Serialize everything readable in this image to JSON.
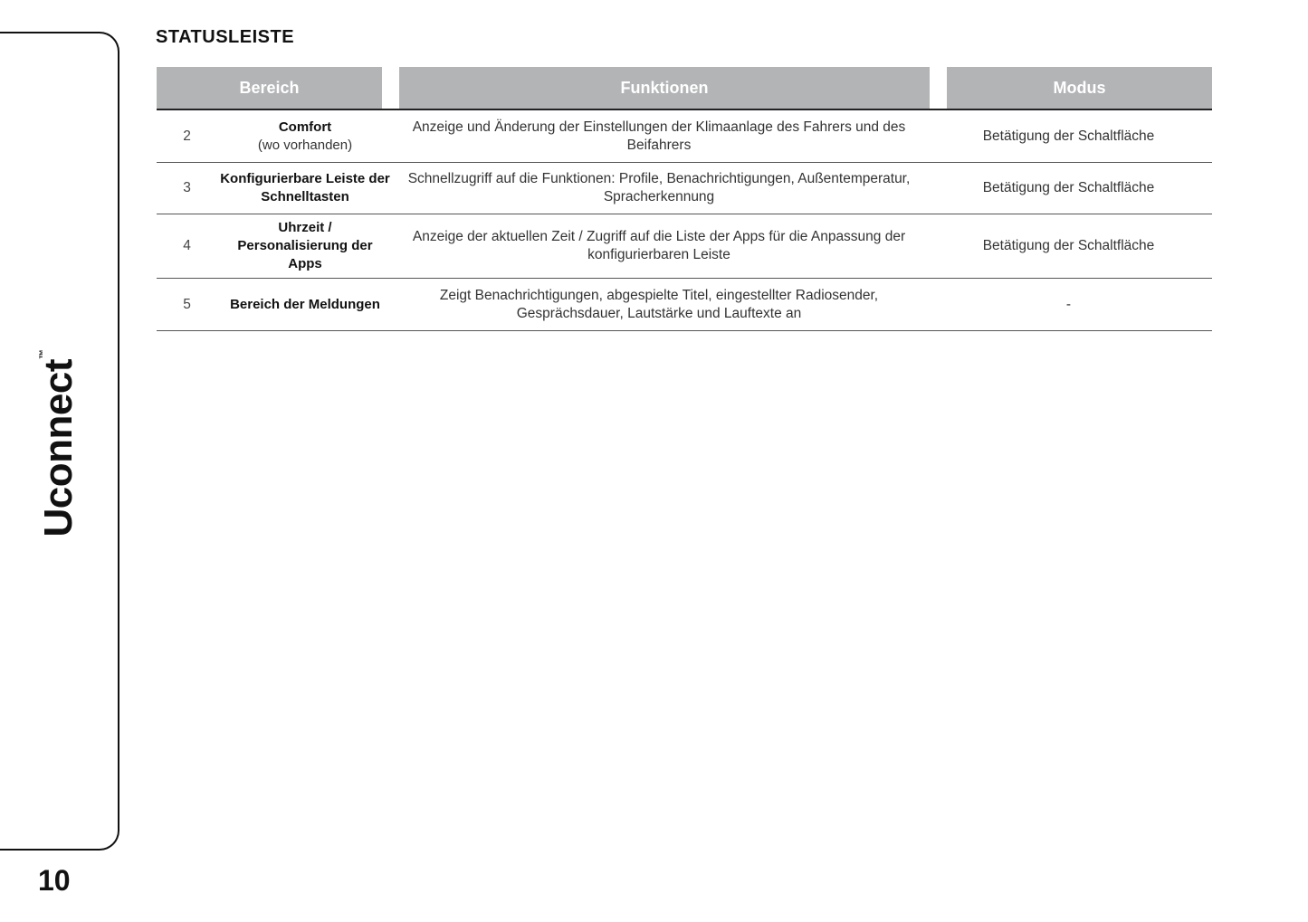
{
  "sidebar": {
    "brand": "Uconnect",
    "trademark": "™"
  },
  "page_number": "10",
  "section_title": "STATUSLEISTE",
  "table": {
    "headers": [
      "Bereich",
      "Funktionen",
      "Modus"
    ],
    "rows": [
      {
        "num": "2",
        "bereich": "Comfort",
        "bereich_sub": "(wo vorhanden)",
        "funktionen": "Anzeige und Änderung der Einstellungen der Klimaanlage des Fahrers und des Beifahrers",
        "modus": "Betätigung der Schaltfläche"
      },
      {
        "num": "3",
        "bereich": "Konfigurierbare Leiste der Schnelltasten",
        "bereich_sub": "",
        "funktionen": "Schnellzugriff auf die Funktionen: Profile, Benachrichtigungen, Außentemperatur, Spracherkennung",
        "modus": "Betätigung der Schaltfläche"
      },
      {
        "num": "4",
        "bereich": "Uhrzeit / Personalisierung der Apps",
        "bereich_sub": "",
        "funktionen": "Anzeige der aktuellen Zeit / Zugriff auf die Liste der Apps für die Anpassung der konfigurierbaren Leiste",
        "modus": "Betätigung der Schaltfläche"
      },
      {
        "num": "5",
        "bereich": "Bereich der Meldungen",
        "bereich_sub": "",
        "funktionen": "Zeigt Benachrichtigungen, abgespielte Titel, eingestellter Radiosender, Gesprächsdauer, Lautstärke und Lauftexte an",
        "modus": "-"
      }
    ]
  }
}
